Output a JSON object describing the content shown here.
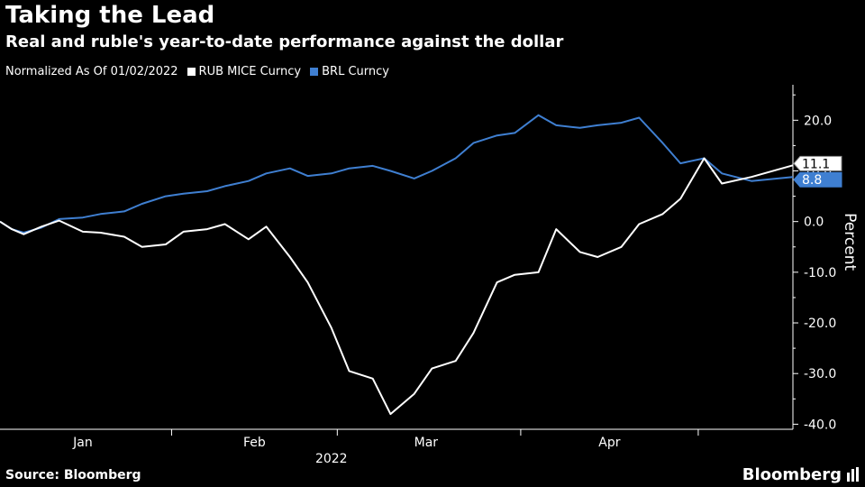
{
  "header": {
    "title": "Taking the Lead",
    "subtitle": "Real and ruble's year-to-date performance against the dollar",
    "note": "Normalized As Of 01/02/2022"
  },
  "footer": {
    "source": "Source: Bloomberg",
    "brand": "Bloomberg"
  },
  "colors": {
    "background": "#000000",
    "rub": "#ffffff",
    "brl": "#3f7fd1"
  },
  "chart_data": {
    "type": "line",
    "title": "Taking the Lead",
    "subtitle": "Real and ruble's year-to-date performance against the dollar",
    "xlabel": "2022",
    "ylabel": "Percent",
    "ylim": [
      -41,
      27
    ],
    "xlim": [
      "2022-01-03",
      "2022-05-17"
    ],
    "x_ticks": [
      "Jan",
      "Feb",
      "Mar",
      "Apr"
    ],
    "y_ticks": [
      20,
      10,
      0,
      -10,
      -20,
      -30,
      -40
    ],
    "y_tick_labels": [
      "20.0",
      "10.0",
      "0.0",
      "-10.0",
      "-20.0",
      "-30.0",
      "-40.0"
    ],
    "grid": false,
    "legend": "top-left",
    "series": [
      {
        "name": "RUB MICE Curncy",
        "color": "#ffffff",
        "last_label": "11.1",
        "points": [
          [
            "2022-01-03",
            0
          ],
          [
            "2022-01-05",
            -1.5
          ],
          [
            "2022-01-07",
            -2.5
          ],
          [
            "2022-01-10",
            -1
          ],
          [
            "2022-01-13",
            0.2
          ],
          [
            "2022-01-17",
            -2
          ],
          [
            "2022-01-20",
            -2.2
          ],
          [
            "2022-01-24",
            -3
          ],
          [
            "2022-01-27",
            -5
          ],
          [
            "2022-01-31",
            -4.5
          ],
          [
            "2022-02-03",
            -2
          ],
          [
            "2022-02-07",
            -1.5
          ],
          [
            "2022-02-10",
            -0.5
          ],
          [
            "2022-02-14",
            -3.5
          ],
          [
            "2022-02-17",
            -1
          ],
          [
            "2022-02-21",
            -7
          ],
          [
            "2022-02-24",
            -12
          ],
          [
            "2022-02-28",
            -21
          ],
          [
            "2022-03-03",
            -29.5
          ],
          [
            "2022-03-07",
            -31
          ],
          [
            "2022-03-10",
            -38
          ],
          [
            "2022-03-14",
            -34
          ],
          [
            "2022-03-17",
            -29
          ],
          [
            "2022-03-21",
            -27.5
          ],
          [
            "2022-03-24",
            -22
          ],
          [
            "2022-03-28",
            -12
          ],
          [
            "2022-03-31",
            -10.5
          ],
          [
            "2022-04-04",
            -10
          ],
          [
            "2022-04-07",
            -1.5
          ],
          [
            "2022-04-11",
            -6
          ],
          [
            "2022-04-14",
            -7
          ],
          [
            "2022-04-18",
            -5
          ],
          [
            "2022-04-21",
            -0.5
          ],
          [
            "2022-04-25",
            1.5
          ],
          [
            "2022-04-28",
            4.5
          ],
          [
            "2022-05-02",
            12.5
          ],
          [
            "2022-05-05",
            7.5
          ],
          [
            "2022-05-10",
            8.8
          ],
          [
            "2022-05-17",
            11.1
          ]
        ]
      },
      {
        "name": "BRL Curncy",
        "color": "#3f7fd1",
        "last_label": "8.8",
        "points": [
          [
            "2022-01-03",
            0
          ],
          [
            "2022-01-05",
            -1.5
          ],
          [
            "2022-01-07",
            -2.2
          ],
          [
            "2022-01-10",
            -1.2
          ],
          [
            "2022-01-13",
            0.5
          ],
          [
            "2022-01-17",
            0.8
          ],
          [
            "2022-01-20",
            1.5
          ],
          [
            "2022-01-24",
            2
          ],
          [
            "2022-01-27",
            3.5
          ],
          [
            "2022-01-31",
            5
          ],
          [
            "2022-02-03",
            5.5
          ],
          [
            "2022-02-07",
            6
          ],
          [
            "2022-02-10",
            7
          ],
          [
            "2022-02-14",
            8
          ],
          [
            "2022-02-17",
            9.5
          ],
          [
            "2022-02-21",
            10.5
          ],
          [
            "2022-02-24",
            9
          ],
          [
            "2022-02-28",
            9.5
          ],
          [
            "2022-03-03",
            10.5
          ],
          [
            "2022-03-07",
            11
          ],
          [
            "2022-03-10",
            10
          ],
          [
            "2022-03-14",
            8.5
          ],
          [
            "2022-03-17",
            10
          ],
          [
            "2022-03-21",
            12.5
          ],
          [
            "2022-03-24",
            15.5
          ],
          [
            "2022-03-28",
            17
          ],
          [
            "2022-03-31",
            17.5
          ],
          [
            "2022-04-04",
            21
          ],
          [
            "2022-04-07",
            19
          ],
          [
            "2022-04-11",
            18.5
          ],
          [
            "2022-04-14",
            19
          ],
          [
            "2022-04-18",
            19.5
          ],
          [
            "2022-04-21",
            20.5
          ],
          [
            "2022-04-25",
            15.5
          ],
          [
            "2022-04-28",
            11.5
          ],
          [
            "2022-05-02",
            12.5
          ],
          [
            "2022-05-05",
            9.5
          ],
          [
            "2022-05-10",
            8
          ],
          [
            "2022-05-17",
            8.8
          ]
        ]
      }
    ]
  }
}
